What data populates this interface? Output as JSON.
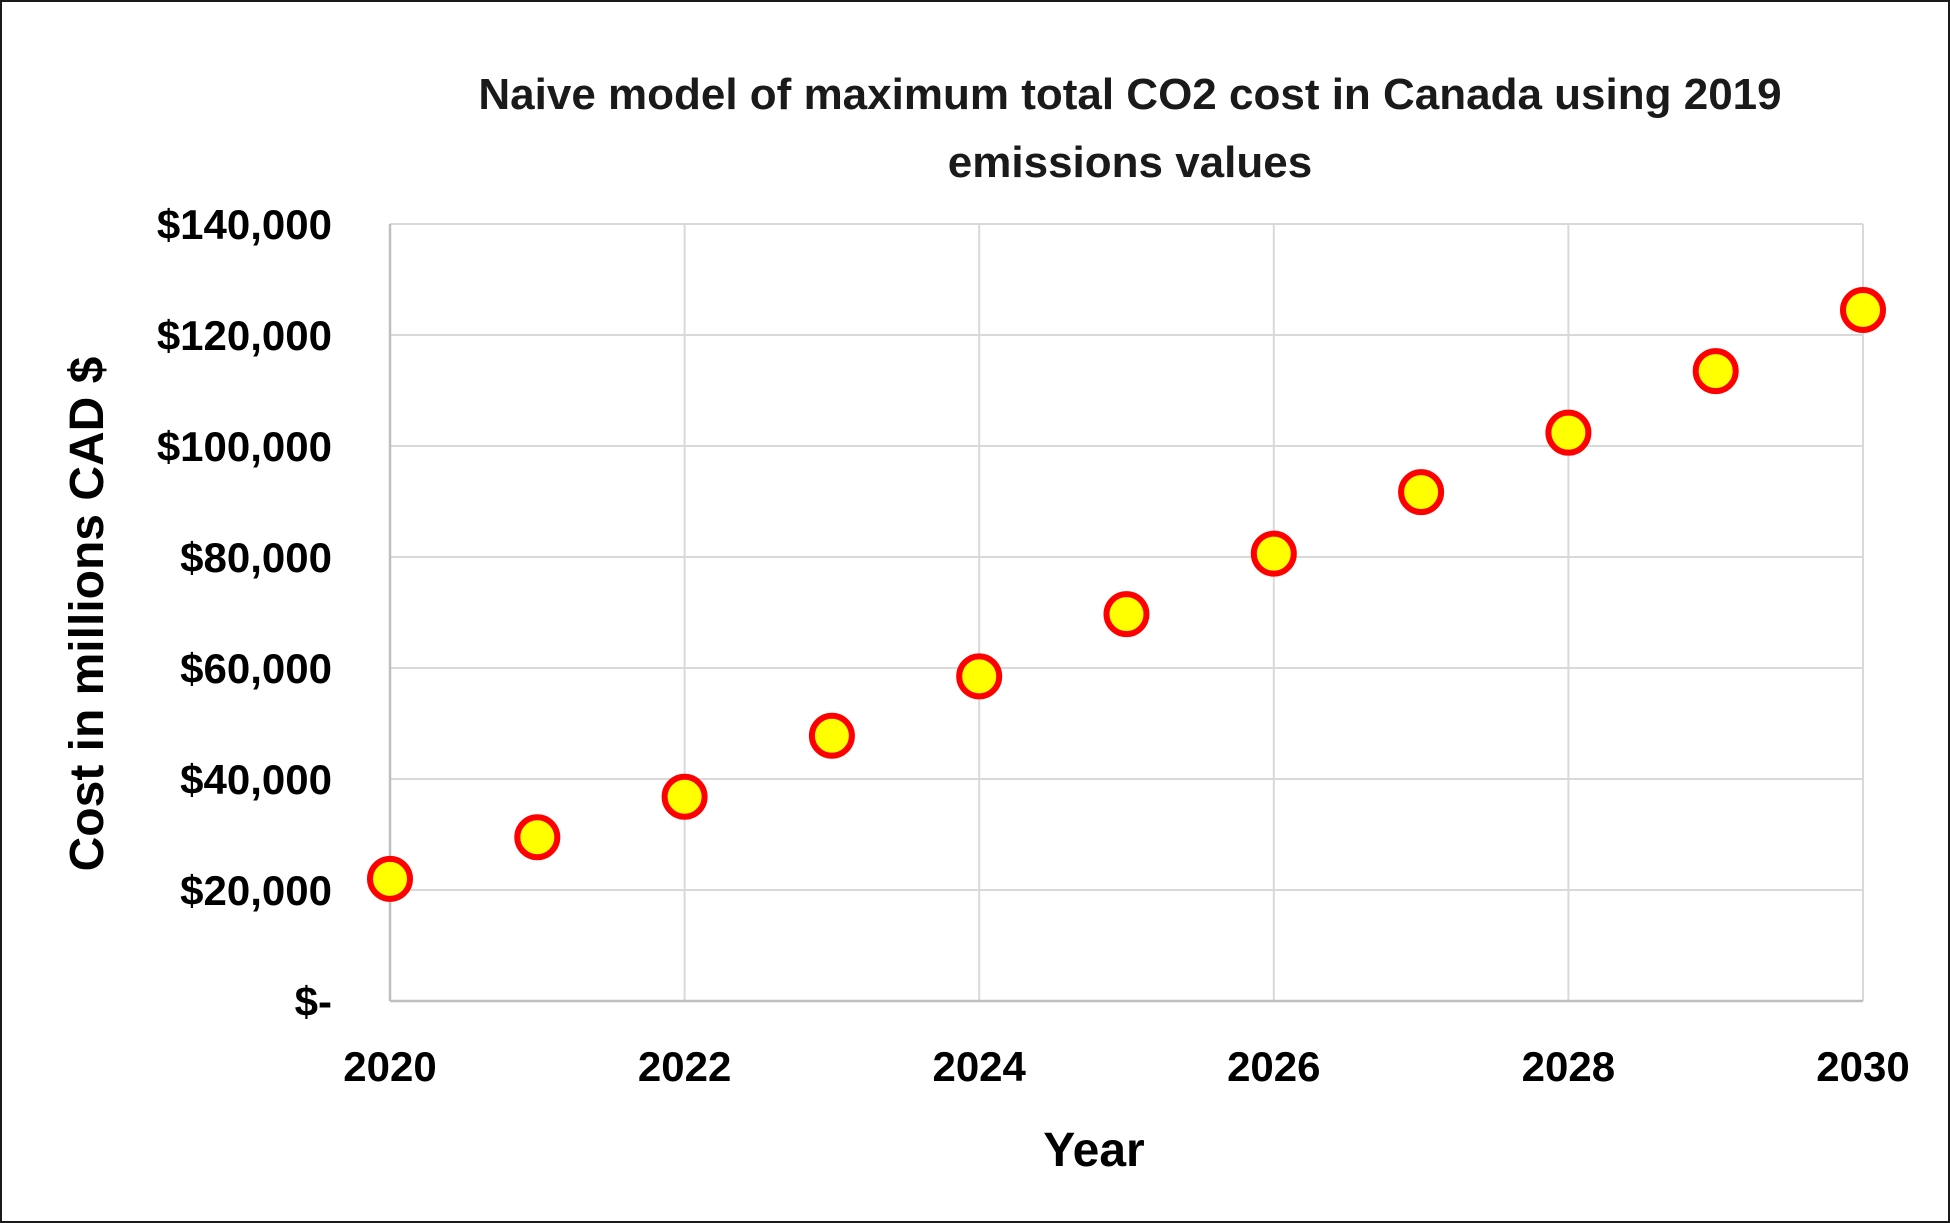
{
  "chart_data": {
    "type": "scatter",
    "title_lines": [
      "Naive model of maximum total CO2 cost in Canada using 2019",
      "emissions values"
    ],
    "xlabel": "Year",
    "ylabel": "Cost in millions CAD $",
    "xlim": [
      2020,
      2030
    ],
    "ylim": [
      0,
      140000
    ],
    "x_ticks": [
      2020,
      2022,
      2024,
      2026,
      2028,
      2030
    ],
    "x_tick_labels": [
      "2020",
      "2022",
      "2024",
      "2026",
      "2028",
      "2030"
    ],
    "y_ticks": [
      0,
      20000,
      40000,
      60000,
      80000,
      100000,
      120000,
      140000
    ],
    "y_tick_labels": [
      "$-",
      "$20,000",
      "$40,000",
      "$60,000",
      "$80,000",
      "$100,000",
      "$120,000",
      "$140,000"
    ],
    "grid": true,
    "legend": "none",
    "series": [
      {
        "x": [
          2020,
          2021,
          2022,
          2023,
          2024,
          2025,
          2026,
          2027,
          2028,
          2029,
          2030
        ],
        "y": [
          22000,
          29500,
          36800,
          47800,
          58500,
          69700,
          80600,
          91700,
          102400,
          113500,
          124500
        ],
        "marker_fill": "#ffff00",
        "marker_edge": "#ff0000"
      }
    ]
  },
  "colors": {
    "grid": "#d9d9d9",
    "axis": "#bfbfbf",
    "text": "#000000"
  }
}
